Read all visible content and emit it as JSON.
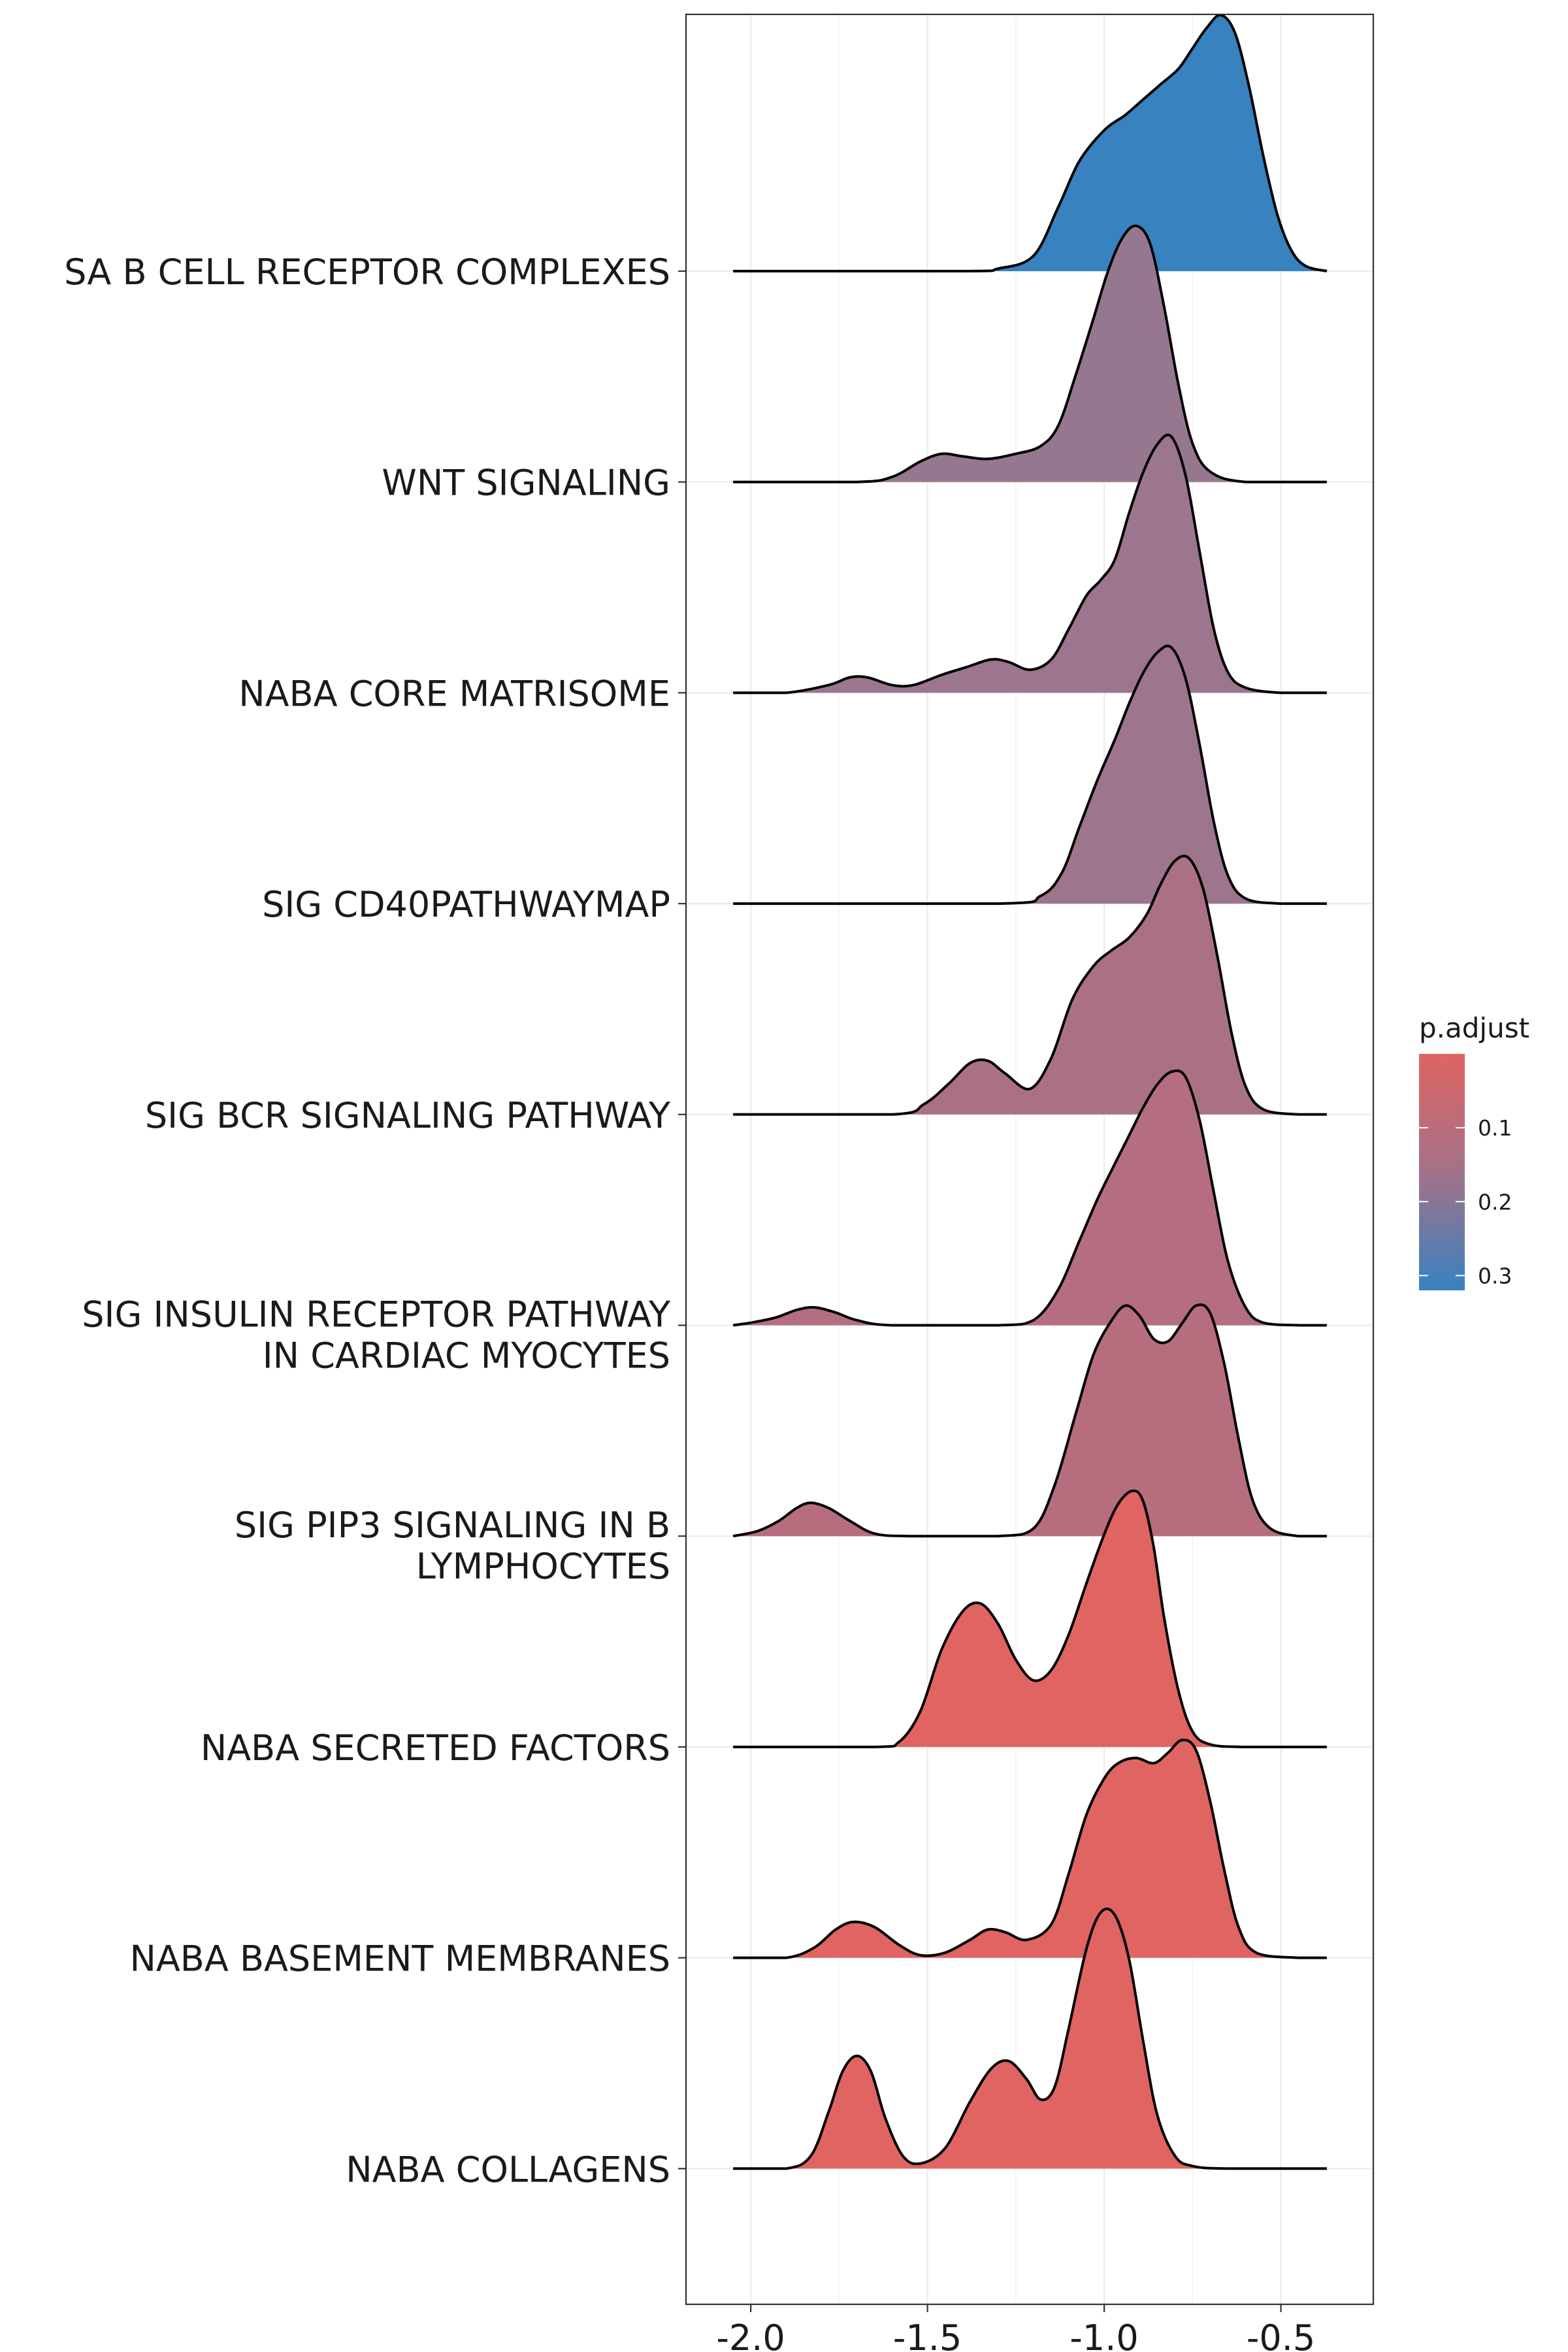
{
  "chart_data": {
    "type": "ridgeline",
    "x_range": [
      -2.1,
      -0.32
    ],
    "x_ticks": [
      "-2.0",
      "-1.5",
      "-1.0",
      "-0.5"
    ],
    "x_tick_values": [
      -2.0,
      -1.5,
      -1.0,
      -0.5
    ],
    "grid": true,
    "legend": {
      "title": "p.adjust",
      "placement": "right",
      "ticks": [
        {
          "label": "0.1",
          "value": 0.1
        },
        {
          "label": "0.2",
          "value": 0.2
        },
        {
          "label": "0.3",
          "value": 0.3
        }
      ],
      "range": [
        0.0,
        0.32
      ],
      "color_low": "#E06462",
      "color_high": "#3782BF"
    },
    "series": [
      {
        "label_lines": [
          "SA B CELL RECEPTOR COMPLEXES"
        ],
        "p_adjust": 0.32,
        "color": "#3782BF",
        "points": [
          [
            -2.05,
            0
          ],
          [
            -1.4,
            0
          ],
          [
            -1.3,
            0.01
          ],
          [
            -1.2,
            0.06
          ],
          [
            -1.13,
            0.25
          ],
          [
            -1.07,
            0.43
          ],
          [
            -1.0,
            0.55
          ],
          [
            -0.94,
            0.61
          ],
          [
            -0.89,
            0.67
          ],
          [
            -0.84,
            0.73
          ],
          [
            -0.79,
            0.79
          ],
          [
            -0.75,
            0.87
          ],
          [
            -0.71,
            0.95
          ],
          [
            -0.67,
            1.0
          ],
          [
            -0.63,
            0.93
          ],
          [
            -0.59,
            0.72
          ],
          [
            -0.55,
            0.45
          ],
          [
            -0.51,
            0.22
          ],
          [
            -0.47,
            0.08
          ],
          [
            -0.43,
            0.02
          ],
          [
            -0.37,
            0
          ]
        ]
      },
      {
        "label_lines": [
          "WNT SIGNALING"
        ],
        "p_adjust": 0.22,
        "color": "#957790",
        "points": [
          [
            -2.05,
            0
          ],
          [
            -1.7,
            0
          ],
          [
            -1.6,
            0.02
          ],
          [
            -1.52,
            0.08
          ],
          [
            -1.46,
            0.11
          ],
          [
            -1.4,
            0.1
          ],
          [
            -1.33,
            0.09
          ],
          [
            -1.25,
            0.11
          ],
          [
            -1.18,
            0.14
          ],
          [
            -1.13,
            0.22
          ],
          [
            -1.08,
            0.42
          ],
          [
            -1.03,
            0.64
          ],
          [
            -0.99,
            0.82
          ],
          [
            -0.95,
            0.95
          ],
          [
            -0.91,
            1.0
          ],
          [
            -0.87,
            0.93
          ],
          [
            -0.83,
            0.68
          ],
          [
            -0.79,
            0.38
          ],
          [
            -0.75,
            0.15
          ],
          [
            -0.7,
            0.04
          ],
          [
            -0.6,
            0
          ],
          [
            -0.37,
            0
          ]
        ]
      },
      {
        "label_lines": [
          "NABA CORE MATRISOME"
        ],
        "p_adjust": 0.2,
        "color": "#9C768E",
        "points": [
          [
            -2.05,
            0
          ],
          [
            -1.9,
            0
          ],
          [
            -1.78,
            0.03
          ],
          [
            -1.72,
            0.06
          ],
          [
            -1.67,
            0.06
          ],
          [
            -1.6,
            0.03
          ],
          [
            -1.54,
            0.03
          ],
          [
            -1.46,
            0.07
          ],
          [
            -1.39,
            0.1
          ],
          [
            -1.32,
            0.13
          ],
          [
            -1.27,
            0.12
          ],
          [
            -1.21,
            0.09
          ],
          [
            -1.15,
            0.13
          ],
          [
            -1.1,
            0.25
          ],
          [
            -1.05,
            0.38
          ],
          [
            -1.01,
            0.44
          ],
          [
            -0.97,
            0.52
          ],
          [
            -0.93,
            0.7
          ],
          [
            -0.89,
            0.86
          ],
          [
            -0.85,
            0.97
          ],
          [
            -0.81,
            1.0
          ],
          [
            -0.77,
            0.85
          ],
          [
            -0.73,
            0.55
          ],
          [
            -0.69,
            0.25
          ],
          [
            -0.65,
            0.08
          ],
          [
            -0.6,
            0.02
          ],
          [
            -0.5,
            0
          ],
          [
            -0.37,
            0
          ]
        ]
      },
      {
        "label_lines": [
          "SIG CD40PATHWAYMAP"
        ],
        "p_adjust": 0.19,
        "color": "#9D758D",
        "points": [
          [
            -2.05,
            0
          ],
          [
            -1.3,
            0
          ],
          [
            -1.18,
            0.03
          ],
          [
            -1.12,
            0.12
          ],
          [
            -1.07,
            0.3
          ],
          [
            -1.02,
            0.48
          ],
          [
            -0.97,
            0.64
          ],
          [
            -0.93,
            0.78
          ],
          [
            -0.89,
            0.9
          ],
          [
            -0.85,
            0.98
          ],
          [
            -0.81,
            1.0
          ],
          [
            -0.77,
            0.88
          ],
          [
            -0.73,
            0.62
          ],
          [
            -0.69,
            0.32
          ],
          [
            -0.65,
            0.11
          ],
          [
            -0.6,
            0.02
          ],
          [
            -0.5,
            0
          ],
          [
            -0.37,
            0
          ]
        ]
      },
      {
        "label_lines": [
          "SIG BCR SIGNALING PATHWAY"
        ],
        "p_adjust": 0.15,
        "color": "#AA7185",
        "points": [
          [
            -2.05,
            0
          ],
          [
            -1.6,
            0
          ],
          [
            -1.51,
            0.04
          ],
          [
            -1.44,
            0.12
          ],
          [
            -1.38,
            0.2
          ],
          [
            -1.33,
            0.21
          ],
          [
            -1.28,
            0.16
          ],
          [
            -1.21,
            0.1
          ],
          [
            -1.15,
            0.22
          ],
          [
            -1.09,
            0.45
          ],
          [
            -1.03,
            0.58
          ],
          [
            -0.98,
            0.64
          ],
          [
            -0.93,
            0.69
          ],
          [
            -0.88,
            0.78
          ],
          [
            -0.84,
            0.9
          ],
          [
            -0.8,
            0.99
          ],
          [
            -0.76,
            1.0
          ],
          [
            -0.72,
            0.88
          ],
          [
            -0.68,
            0.62
          ],
          [
            -0.64,
            0.32
          ],
          [
            -0.6,
            0.11
          ],
          [
            -0.55,
            0.02
          ],
          [
            -0.45,
            0
          ],
          [
            -0.37,
            0
          ]
        ]
      },
      {
        "label_lines": [
          "SIG INSULIN RECEPTOR PATHWAY",
          "IN CARDIAC MYOCYTES"
        ],
        "p_adjust": 0.13,
        "color": "#B56E7F",
        "points": [
          [
            -2.05,
            0
          ],
          [
            -2.0,
            0.01
          ],
          [
            -1.93,
            0.03
          ],
          [
            -1.87,
            0.06
          ],
          [
            -1.82,
            0.07
          ],
          [
            -1.76,
            0.05
          ],
          [
            -1.7,
            0.02
          ],
          [
            -1.6,
            0
          ],
          [
            -1.3,
            0
          ],
          [
            -1.2,
            0.02
          ],
          [
            -1.13,
            0.14
          ],
          [
            -1.07,
            0.33
          ],
          [
            -1.02,
            0.49
          ],
          [
            -0.97,
            0.63
          ],
          [
            -0.93,
            0.74
          ],
          [
            -0.89,
            0.85
          ],
          [
            -0.85,
            0.94
          ],
          [
            -0.81,
            0.99
          ],
          [
            -0.77,
            0.97
          ],
          [
            -0.73,
            0.8
          ],
          [
            -0.69,
            0.52
          ],
          [
            -0.65,
            0.25
          ],
          [
            -0.6,
            0.07
          ],
          [
            -0.55,
            0.01
          ],
          [
            -0.45,
            0
          ],
          [
            -0.37,
            0
          ]
        ]
      },
      {
        "label_lines": [
          "SIG PIP3 SIGNALING IN B",
          "LYMPHOCYTES"
        ],
        "p_adjust": 0.13,
        "color": "#B66E7E",
        "points": [
          [
            -2.05,
            0
          ],
          [
            -1.98,
            0.02
          ],
          [
            -1.92,
            0.06
          ],
          [
            -1.87,
            0.11
          ],
          [
            -1.83,
            0.13
          ],
          [
            -1.78,
            0.11
          ],
          [
            -1.72,
            0.06
          ],
          [
            -1.65,
            0.01
          ],
          [
            -1.55,
            0
          ],
          [
            -1.3,
            0
          ],
          [
            -1.2,
            0.03
          ],
          [
            -1.14,
            0.2
          ],
          [
            -1.08,
            0.48
          ],
          [
            -1.03,
            0.71
          ],
          [
            -0.98,
            0.84
          ],
          [
            -0.94,
            0.9
          ],
          [
            -0.9,
            0.86
          ],
          [
            -0.86,
            0.77
          ],
          [
            -0.82,
            0.76
          ],
          [
            -0.78,
            0.83
          ],
          [
            -0.74,
            0.9
          ],
          [
            -0.7,
            0.87
          ],
          [
            -0.66,
            0.67
          ],
          [
            -0.62,
            0.38
          ],
          [
            -0.58,
            0.14
          ],
          [
            -0.53,
            0.03
          ],
          [
            -0.45,
            0
          ],
          [
            -0.37,
            0
          ]
        ]
      },
      {
        "label_lines": [
          "NABA SECRETED FACTORS"
        ],
        "p_adjust": 0.02,
        "color": "#E06462",
        "points": [
          [
            -2.05,
            0
          ],
          [
            -1.65,
            0
          ],
          [
            -1.58,
            0.02
          ],
          [
            -1.52,
            0.14
          ],
          [
            -1.46,
            0.38
          ],
          [
            -1.4,
            0.53
          ],
          [
            -1.35,
            0.56
          ],
          [
            -1.3,
            0.48
          ],
          [
            -1.25,
            0.34
          ],
          [
            -1.2,
            0.26
          ],
          [
            -1.15,
            0.3
          ],
          [
            -1.1,
            0.44
          ],
          [
            -1.05,
            0.64
          ],
          [
            -1.0,
            0.83
          ],
          [
            -0.96,
            0.95
          ],
          [
            -0.92,
            1.0
          ],
          [
            -0.89,
            0.96
          ],
          [
            -0.86,
            0.78
          ],
          [
            -0.83,
            0.5
          ],
          [
            -0.79,
            0.22
          ],
          [
            -0.75,
            0.06
          ],
          [
            -0.7,
            0.01
          ],
          [
            -0.6,
            0
          ],
          [
            -0.37,
            0
          ]
        ]
      },
      {
        "label_lines": [
          "NABA BASEMENT MEMBRANES"
        ],
        "p_adjust": 0.02,
        "color": "#DF6462",
        "points": [
          [
            -2.05,
            0
          ],
          [
            -1.9,
            0
          ],
          [
            -1.82,
            0.04
          ],
          [
            -1.76,
            0.11
          ],
          [
            -1.71,
            0.14
          ],
          [
            -1.65,
            0.12
          ],
          [
            -1.58,
            0.05
          ],
          [
            -1.52,
            0.01
          ],
          [
            -1.45,
            0.02
          ],
          [
            -1.38,
            0.07
          ],
          [
            -1.33,
            0.11
          ],
          [
            -1.28,
            0.1
          ],
          [
            -1.22,
            0.07
          ],
          [
            -1.15,
            0.13
          ],
          [
            -1.1,
            0.33
          ],
          [
            -1.05,
            0.56
          ],
          [
            -1.0,
            0.7
          ],
          [
            -0.96,
            0.76
          ],
          [
            -0.91,
            0.78
          ],
          [
            -0.86,
            0.76
          ],
          [
            -0.82,
            0.8
          ],
          [
            -0.78,
            0.85
          ],
          [
            -0.74,
            0.81
          ],
          [
            -0.7,
            0.61
          ],
          [
            -0.66,
            0.34
          ],
          [
            -0.62,
            0.12
          ],
          [
            -0.57,
            0.02
          ],
          [
            -0.45,
            0
          ],
          [
            -0.37,
            0
          ]
        ]
      },
      {
        "label_lines": [
          "NABA COLLAGENS"
        ],
        "p_adjust": 0.01,
        "color": "#E06462",
        "points": [
          [
            -2.05,
            0
          ],
          [
            -1.9,
            0
          ],
          [
            -1.83,
            0.05
          ],
          [
            -1.78,
            0.22
          ],
          [
            -1.74,
            0.38
          ],
          [
            -1.7,
            0.44
          ],
          [
            -1.66,
            0.38
          ],
          [
            -1.62,
            0.2
          ],
          [
            -1.57,
            0.05
          ],
          [
            -1.52,
            0.02
          ],
          [
            -1.45,
            0.08
          ],
          [
            -1.38,
            0.26
          ],
          [
            -1.32,
            0.39
          ],
          [
            -1.27,
            0.42
          ],
          [
            -1.22,
            0.35
          ],
          [
            -1.18,
            0.27
          ],
          [
            -1.14,
            0.32
          ],
          [
            -1.1,
            0.55
          ],
          [
            -1.05,
            0.86
          ],
          [
            -1.01,
            1.0
          ],
          [
            -0.97,
            0.99
          ],
          [
            -0.93,
            0.82
          ],
          [
            -0.89,
            0.5
          ],
          [
            -0.85,
            0.21
          ],
          [
            -0.8,
            0.05
          ],
          [
            -0.75,
            0.01
          ],
          [
            -0.65,
            0
          ],
          [
            -0.37,
            0
          ]
        ]
      }
    ]
  }
}
